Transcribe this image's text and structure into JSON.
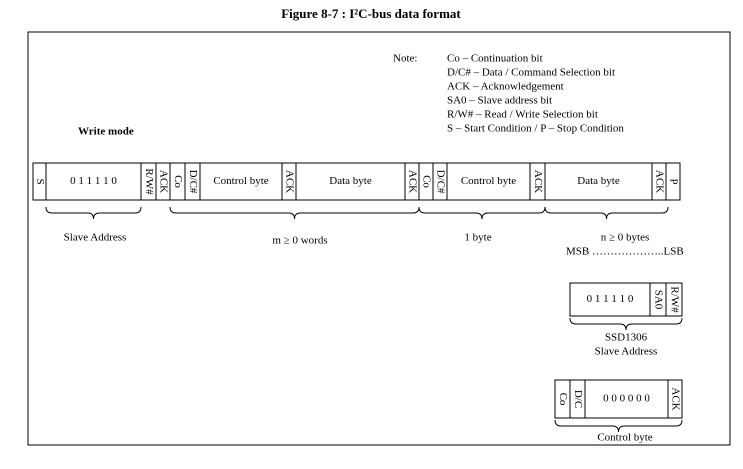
{
  "title": "Figure 8-7 : I²C-bus data format",
  "note": {
    "label": "Note:",
    "lines": [
      "Co – Continuation bit",
      "D/C# – Data / Command Selection bit",
      "ACK – Acknowledgement",
      "SA0 – Slave address bit",
      "R/W# – Read / Write Selection bit",
      "S – Start Condition / P – Stop Condition"
    ]
  },
  "write_mode": "Write mode",
  "main_row": {
    "cells": [
      "S",
      "0 1 1 1 1 0",
      "R/W#",
      "ACK",
      "Co",
      "D/C#",
      "Control byte",
      "ACK",
      "Data byte",
      "ACK",
      "Co",
      "D/C#",
      "Control byte",
      "ACK",
      "Data byte",
      "ACK",
      "P"
    ],
    "braces": [
      "Slave Address",
      "m ≥ 0 words",
      "1 byte",
      "n ≥ 0 bytes"
    ]
  },
  "msb_lsb": "MSB ………………..LSB",
  "slave_box": {
    "cells": [
      "0 1 1 1 1 0",
      "SA0",
      "R/W#"
    ],
    "labels": [
      "SSD1306",
      "Slave Address"
    ]
  },
  "control_box": {
    "cells": [
      "Co",
      "D/C",
      "0 0 0 0 0 0",
      "ACK"
    ],
    "label": "Control byte"
  }
}
